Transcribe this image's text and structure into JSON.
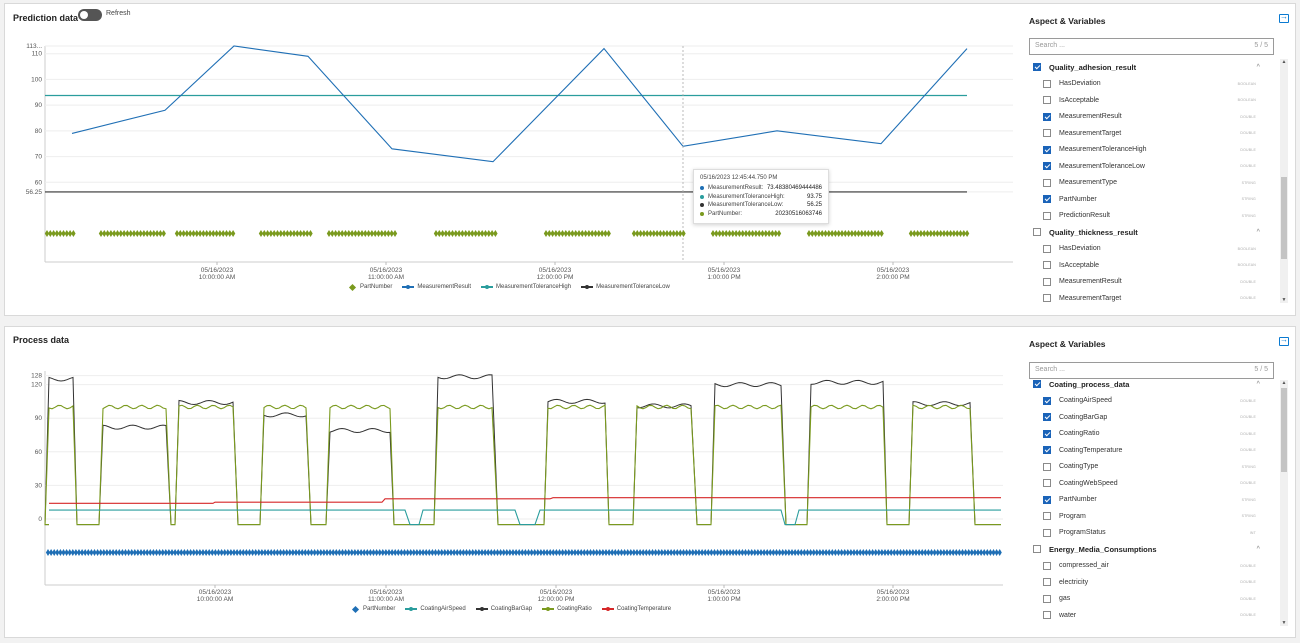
{
  "prediction": {
    "title": "Prediction data",
    "refresh_label": "Refresh",
    "y_ticks": [
      "113...",
      "110",
      "100",
      "90",
      "80",
      "70",
      "60",
      "56.25"
    ],
    "x_ticks": [
      {
        "date": "05/16/2023",
        "time": "10:00:00 AM"
      },
      {
        "date": "05/16/2023",
        "time": "11:00:00 AM"
      },
      {
        "date": "05/16/2023",
        "time": "12:00:00 PM"
      },
      {
        "date": "05/16/2023",
        "time": "1:00:00 PM"
      },
      {
        "date": "05/16/2023",
        "time": "2:00:00 PM"
      }
    ],
    "tooltip": {
      "timestamp": "05/16/2023 12:45:44.750 PM",
      "rows": [
        {
          "label": "MeasurementResult:",
          "value": "73.48380469444486",
          "color": "#1f6fb5"
        },
        {
          "label": "MeasurementToleranceHigh:",
          "value": "93.75",
          "color": "#2a9d9d"
        },
        {
          "label": "MeasurementToleranceLow:",
          "value": "56.25",
          "color": "#333333"
        },
        {
          "label": "PartNumber:",
          "value": "20230516063746",
          "color": "#7a9a1e"
        }
      ]
    },
    "legend": [
      {
        "label": "PartNumber",
        "color": "#7a9a1e",
        "icon": "diamond"
      },
      {
        "label": "MeasurementResult",
        "color": "#1f6fb5",
        "icon": "line-dot"
      },
      {
        "label": "MeasurementToleranceHigh",
        "color": "#2a9d9d",
        "icon": "line-dot"
      },
      {
        "label": "MeasurementToleranceLow",
        "color": "#333333",
        "icon": "line-dot"
      }
    ]
  },
  "process": {
    "title": "Process data",
    "y_ticks": [
      "128",
      "120",
      "90",
      "60",
      "30",
      "0"
    ],
    "x_ticks": [
      {
        "date": "05/16/2023",
        "time": "10:00:00 AM"
      },
      {
        "date": "05/16/2023",
        "time": "11:00:00 AM"
      },
      {
        "date": "05/16/2023",
        "time": "12:00:00 PM"
      },
      {
        "date": "05/16/2023",
        "time": "1:00:00 PM"
      },
      {
        "date": "05/16/2023",
        "time": "2:00:00 PM"
      }
    ],
    "legend": [
      {
        "label": "PartNumber",
        "color": "#1f6fb5",
        "icon": "diamond"
      },
      {
        "label": "CoatingAirSpeed",
        "color": "#2a9d9d",
        "icon": "line-dot"
      },
      {
        "label": "CoatingBarGap",
        "color": "#333333",
        "icon": "line-dot"
      },
      {
        "label": "CoatingRatio",
        "color": "#7a9a1e",
        "icon": "line-dot"
      },
      {
        "label": "CoatingTemperature",
        "color": "#d62728",
        "icon": "line-dot"
      }
    ]
  },
  "aspects1": {
    "title": "Aspect & Variables",
    "search_placeholder": "Search ...",
    "count": "5 / 5",
    "rows": [
      {
        "kind": "group",
        "label": "Quality_adhesion_result",
        "checked": true
      },
      {
        "kind": "item",
        "label": "HasDeviation",
        "checked": false,
        "type": "BOOLEAN"
      },
      {
        "kind": "item",
        "label": "IsAcceptable",
        "checked": false,
        "type": "BOOLEAN"
      },
      {
        "kind": "item",
        "label": "MeasurementResult",
        "checked": true,
        "type": "DOUBLE"
      },
      {
        "kind": "item",
        "label": "MeasurementTarget",
        "checked": false,
        "type": "DOUBLE"
      },
      {
        "kind": "item",
        "label": "MeasurementToleranceHigh",
        "checked": true,
        "type": "DOUBLE"
      },
      {
        "kind": "item",
        "label": "MeasurementToleranceLow",
        "checked": true,
        "type": "DOUBLE"
      },
      {
        "kind": "item",
        "label": "MeasurementType",
        "checked": false,
        "type": "STRING"
      },
      {
        "kind": "item",
        "label": "PartNumber",
        "checked": true,
        "type": "STRING"
      },
      {
        "kind": "item",
        "label": "PredictionResult",
        "checked": false,
        "type": "STRING"
      },
      {
        "kind": "group",
        "label": "Quality_thickness_result",
        "checked": false
      },
      {
        "kind": "item",
        "label": "HasDeviation",
        "checked": false,
        "type": "BOOLEAN"
      },
      {
        "kind": "item",
        "label": "IsAcceptable",
        "checked": false,
        "type": "BOOLEAN"
      },
      {
        "kind": "item",
        "label": "MeasurementResult",
        "checked": false,
        "type": "DOUBLE"
      },
      {
        "kind": "item",
        "label": "MeasurementTarget",
        "checked": false,
        "type": "DOUBLE"
      }
    ]
  },
  "aspects2": {
    "title": "Aspect & Variables",
    "search_placeholder": "Search ...",
    "count": "5 / 5",
    "rows": [
      {
        "kind": "group",
        "label": "Coating_process_data",
        "checked": true
      },
      {
        "kind": "item",
        "label": "CoatingAirSpeed",
        "checked": true,
        "type": "DOUBLE"
      },
      {
        "kind": "item",
        "label": "CoatingBarGap",
        "checked": true,
        "type": "DOUBLE"
      },
      {
        "kind": "item",
        "label": "CoatingRatio",
        "checked": true,
        "type": "DOUBLE"
      },
      {
        "kind": "item",
        "label": "CoatingTemperature",
        "checked": true,
        "type": "DOUBLE"
      },
      {
        "kind": "item",
        "label": "CoatingType",
        "checked": false,
        "type": "STRING"
      },
      {
        "kind": "item",
        "label": "CoatingWebSpeed",
        "checked": false,
        "type": "DOUBLE"
      },
      {
        "kind": "item",
        "label": "PartNumber",
        "checked": true,
        "type": "STRING"
      },
      {
        "kind": "item",
        "label": "Program",
        "checked": false,
        "type": "STRING"
      },
      {
        "kind": "item",
        "label": "ProgramStatus",
        "checked": false,
        "type": "INT"
      },
      {
        "kind": "group",
        "label": "Energy_Media_Consumptions",
        "checked": false
      },
      {
        "kind": "item",
        "label": "compressed_air",
        "checked": false,
        "type": "DOUBLE"
      },
      {
        "kind": "item",
        "label": "electricity",
        "checked": false,
        "type": "DOUBLE"
      },
      {
        "kind": "item",
        "label": "gas",
        "checked": false,
        "type": "DOUBLE"
      },
      {
        "kind": "item",
        "label": "water",
        "checked": false,
        "type": "DOUBLE"
      }
    ]
  },
  "chart_data": [
    {
      "type": "line",
      "title": "Prediction data",
      "series": [
        {
          "name": "MeasurementResult",
          "color": "#1f6fb5",
          "x": [
            0,
            1,
            2,
            3,
            4,
            5,
            6,
            7,
            8,
            9,
            10
          ],
          "values": [
            79,
            88,
            113,
            109,
            73,
            68,
            112,
            74,
            80,
            75,
            112
          ]
        },
        {
          "name": "MeasurementToleranceHigh",
          "color": "#2a9d9d",
          "values": [
            93.75
          ]
        },
        {
          "name": "MeasurementToleranceLow",
          "color": "#333333",
          "values": [
            56.25
          ]
        }
      ],
      "ylim": [
        50,
        113
      ]
    },
    {
      "type": "line",
      "title": "Process data",
      "series": [
        {
          "name": "CoatingAirSpeed",
          "color": "#2a9d9d",
          "approx_value": 8
        },
        {
          "name": "CoatingBarGap",
          "color": "#333333",
          "high_segments": [
            125,
            82,
            104,
            93,
            79,
            127,
            105,
            101,
            120,
            122,
            103
          ]
        },
        {
          "name": "CoatingRatio",
          "color": "#7a9a1e",
          "high_value": 100
        },
        {
          "name": "CoatingTemperature",
          "color": "#d62728",
          "values": [
            14,
            15,
            18,
            19,
            19
          ]
        }
      ],
      "ylim": [
        -5,
        128
      ]
    }
  ]
}
